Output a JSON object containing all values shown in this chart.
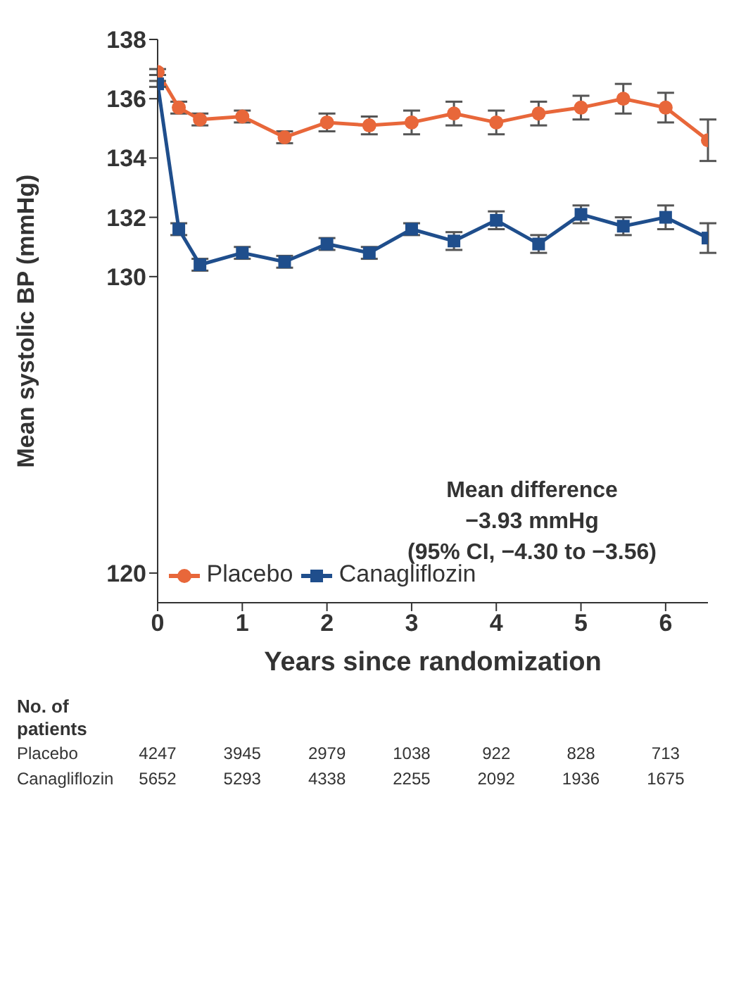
{
  "chart_data": {
    "type": "line",
    "xlabel": "Years since randomization",
    "ylabel": "Mean systolic BP (mmHg)",
    "xlim": [
      0,
      6.5
    ],
    "xticks": [
      0,
      1,
      2,
      3,
      4,
      5,
      6
    ],
    "ylim": [
      119,
      138
    ],
    "yticks": [
      120,
      130,
      132,
      134,
      136,
      138
    ],
    "legend": "bottom left",
    "grid": false,
    "series": [
      {
        "name": "Placebo",
        "color": "#e8673a",
        "marker": "circle",
        "x": [
          0,
          0.25,
          0.5,
          1,
          1.5,
          2,
          2.5,
          3,
          3.5,
          4,
          4.5,
          5,
          5.5,
          6,
          6.5
        ],
        "values": [
          136.9,
          135.7,
          135.3,
          135.4,
          134.7,
          135.2,
          135.1,
          135.2,
          135.5,
          135.2,
          135.5,
          135.7,
          136.0,
          135.7,
          134.6
        ],
        "errors": [
          0.1,
          0.2,
          0.2,
          0.2,
          0.2,
          0.3,
          0.3,
          0.4,
          0.4,
          0.4,
          0.4,
          0.4,
          0.5,
          0.5,
          0.7
        ]
      },
      {
        "name": "Canagliflozin",
        "color": "#1f4e8c",
        "marker": "square",
        "x": [
          0,
          0.25,
          0.5,
          1,
          1.5,
          2,
          2.5,
          3,
          3.5,
          4,
          4.5,
          5,
          5.5,
          6,
          6.5
        ],
        "values": [
          136.5,
          131.6,
          130.4,
          130.8,
          130.5,
          131.1,
          130.8,
          131.6,
          131.2,
          131.9,
          131.1,
          132.1,
          131.7,
          132.0,
          131.3
        ],
        "errors": [
          0.1,
          0.2,
          0.2,
          0.2,
          0.2,
          0.2,
          0.2,
          0.2,
          0.3,
          0.3,
          0.3,
          0.3,
          0.3,
          0.4,
          0.5
        ]
      }
    ],
    "annotations": [
      "Mean difference",
      "−3.93 mmHg",
      "(95% CI, −4.30 to −3.56)",
      "No. of patients",
      "Placebo",
      "Canagliflozin",
      "4247",
      "3945",
      "2979",
      "1038",
      "922",
      "828",
      "713",
      "5652",
      "5293",
      "4338",
      "2255",
      "2092",
      "1936",
      "1675"
    ]
  }
}
